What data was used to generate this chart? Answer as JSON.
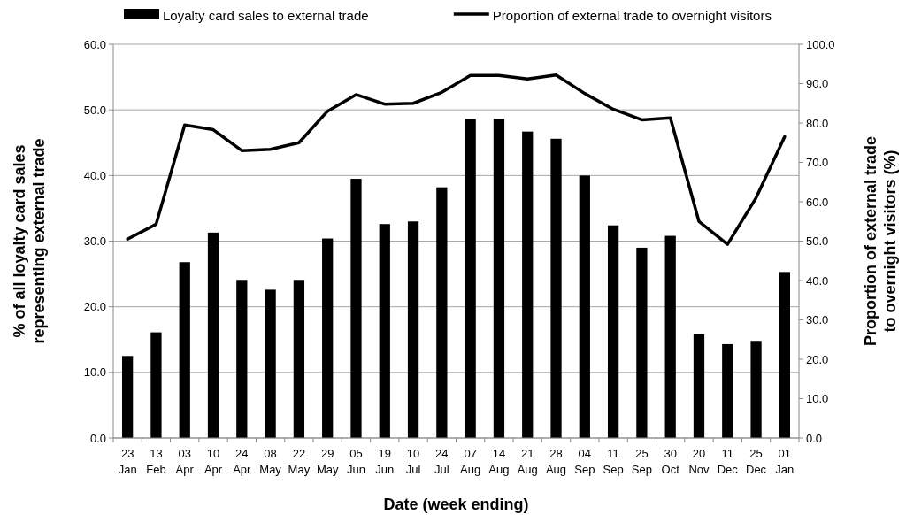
{
  "chart_data": {
    "type": "bar",
    "xlabel": "Date (week ending)",
    "ylabel": "% of all loyalty card sales representing external trade",
    "y2label": "Proportion of external trade to overnight visitors (%)",
    "categories": [
      "23 Jan",
      "13 Feb",
      "03 Apr",
      "10 Apr",
      "24 Apr",
      "08 May",
      "22 May",
      "29 May",
      "05 Jun",
      "19 Jun",
      "10 Jul",
      "24 Jul",
      "07 Aug",
      "14 Aug",
      "21 Aug",
      "28 Aug",
      "04 Sep",
      "11 Sep",
      "25 Sep",
      "30 Oct",
      "20 Nov",
      "11 Dec",
      "25 Dec",
      "01 Jan"
    ],
    "series": [
      {
        "name": "Loyalty card sales to external trade",
        "color": "#000000",
        "values": [
          12.5,
          16.1,
          26.8,
          31.3,
          24.1,
          22.6,
          24.1,
          30.4,
          39.5,
          32.6,
          33.0,
          38.2,
          48.6,
          48.6,
          46.7,
          45.6,
          40.0,
          32.4,
          29.0,
          30.8,
          15.8,
          14.3,
          14.8,
          25.3
        ]
      },
      {
        "name": "Proportion of external trade to overnight visitors",
        "type": "line",
        "axis": "y2",
        "color": "#000000",
        "values": [
          50.5,
          54.3,
          79.5,
          78.3,
          73.0,
          73.3,
          75.0,
          83.0,
          87.2,
          84.8,
          85.0,
          87.8,
          92.1,
          92.1,
          91.2,
          92.2,
          87.5,
          83.5,
          80.8,
          81.3,
          55.0,
          49.2,
          61.0,
          76.5
        ]
      }
    ],
    "ylim": [
      0,
      60
    ],
    "yticks": [
      {
        "value": 0,
        "label": "0.0"
      },
      {
        "value": 10,
        "label": "10.0"
      },
      {
        "value": 20,
        "label": "20.0"
      },
      {
        "value": 30,
        "label": "30.0"
      },
      {
        "value": 40,
        "label": "40.0"
      },
      {
        "value": 50,
        "label": "50.0"
      },
      {
        "value": 60,
        "label": "60.0"
      }
    ],
    "y2lim": [
      0,
      100
    ],
    "y2ticks": [
      {
        "value": 0,
        "label": "0.0"
      },
      {
        "value": 10,
        "label": "10.0"
      },
      {
        "value": 20,
        "label": "20.0"
      },
      {
        "value": 30,
        "label": "30.0"
      },
      {
        "value": 40,
        "label": "40.0"
      },
      {
        "value": 50,
        "label": "50.0"
      },
      {
        "value": 60,
        "label": "60.0"
      },
      {
        "value": 70,
        "label": "70.0"
      },
      {
        "value": 80,
        "label": "80.0"
      },
      {
        "value": 90,
        "label": "90.0"
      },
      {
        "value": 100,
        "label": "100.0"
      }
    ],
    "grid": "y",
    "legend": "top",
    "marker": "none",
    "line_style": "solid"
  }
}
